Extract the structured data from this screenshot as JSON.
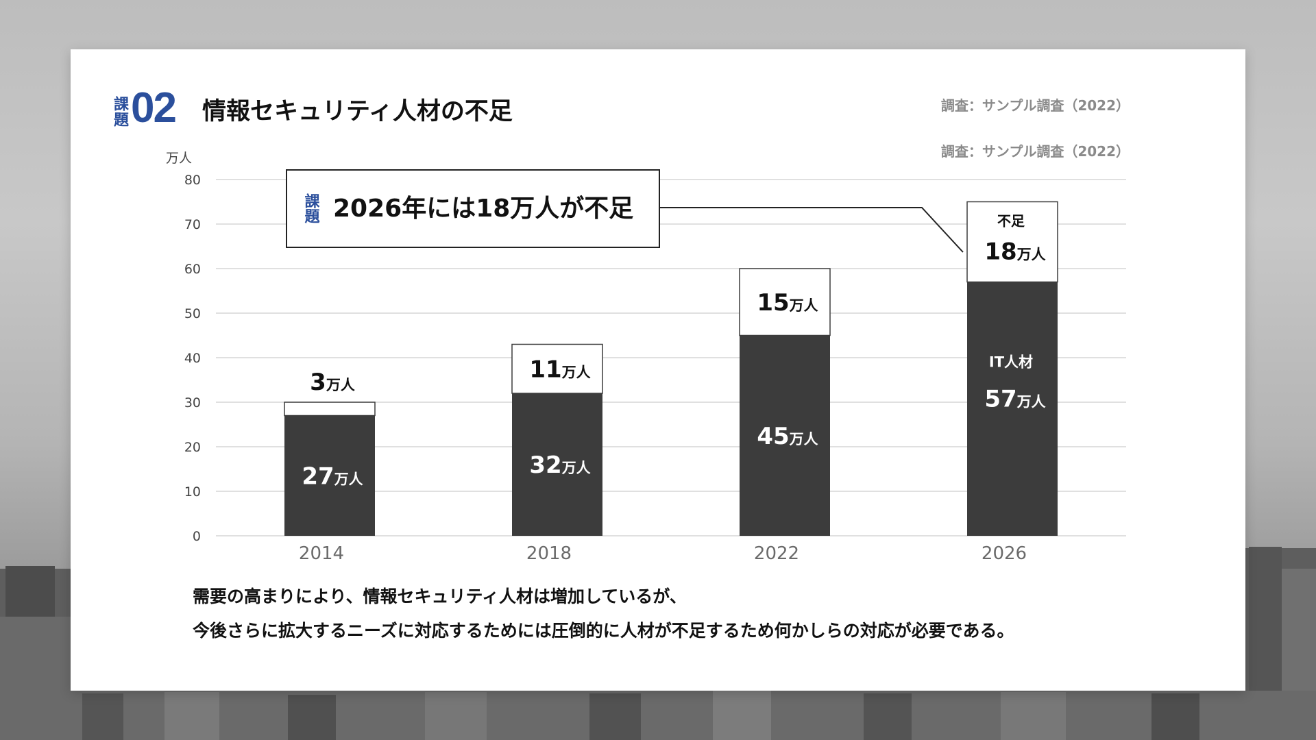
{
  "header": {
    "badge_word": "課題",
    "badge_number": "02",
    "title": "情報セキュリティ人材の不足",
    "sources": [
      "調査：サンプル調査（2022）",
      "調査：サンプル調査（2022）"
    ]
  },
  "callout": {
    "badge_word": "課題",
    "text": "2026年には18万人が不足"
  },
  "colors": {
    "accent": "#2b4f9c",
    "bar_dark": "#3c3c3c",
    "shortage_fill": "#ffffff"
  },
  "chart_data": {
    "type": "bar",
    "stacked": true,
    "categories": [
      "2014",
      "2018",
      "2022",
      "2026"
    ],
    "y_unit_label": "万人",
    "ylim": [
      0,
      80
    ],
    "yticks": [
      0,
      10,
      20,
      30,
      40,
      50,
      60,
      70,
      80
    ],
    "grid": true,
    "unit": "万人",
    "series": [
      {
        "name": "IT人材",
        "values": [
          27,
          32,
          45,
          57
        ],
        "color": "#3c3c3c"
      },
      {
        "name": "不足",
        "values": [
          3,
          11,
          15,
          18
        ],
        "color": "#ffffff"
      }
    ]
  },
  "description": [
    "需要の高まりにより、情報セキュリティ人材は増加しているが、",
    "今後さらに拡大するニーズに対応するためには圧倒的に人材が不足するため何かしらの対応が必要である。"
  ]
}
